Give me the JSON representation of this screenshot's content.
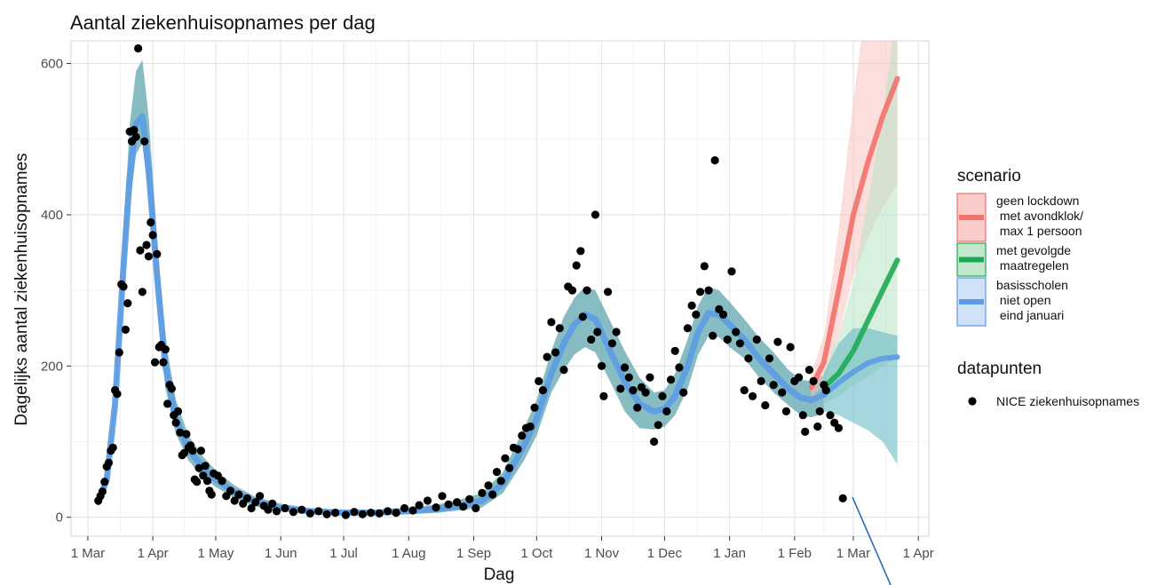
{
  "chart_data": {
    "type": "line",
    "title": "Aantal ziekenhuisopnames per dag",
    "xlabel": "Dag",
    "ylabel": "Dagelijks aantal ziekenhuisopnames",
    "xlim": [
      "2020-02-22",
      "2021-04-06"
    ],
    "ylim": [
      -25,
      630
    ],
    "grid": true,
    "legend_placement": "right",
    "x_ticks": [
      {
        "date": "2020-03-01",
        "label": "1 Mar"
      },
      {
        "date": "2020-04-01",
        "label": "1 Apr"
      },
      {
        "date": "2020-05-01",
        "label": "1 May"
      },
      {
        "date": "2020-06-01",
        "label": "1 Jun"
      },
      {
        "date": "2020-07-01",
        "label": "1 Jul"
      },
      {
        "date": "2020-08-01",
        "label": "1 Aug"
      },
      {
        "date": "2020-09-01",
        "label": "1 Sep"
      },
      {
        "date": "2020-10-01",
        "label": "1 Oct"
      },
      {
        "date": "2020-11-01",
        "label": "1 Nov"
      },
      {
        "date": "2020-12-01",
        "label": "1 Dec"
      },
      {
        "date": "2021-01-01",
        "label": "1 Jan"
      },
      {
        "date": "2021-02-01",
        "label": "1 Feb"
      },
      {
        "date": "2021-03-01",
        "label": "1 Mar"
      },
      {
        "date": "2021-04-01",
        "label": "1 Apr"
      }
    ],
    "y_ticks": [
      {
        "value": 0,
        "label": "0"
      },
      {
        "value": 200,
        "label": "200"
      },
      {
        "value": 400,
        "label": "400"
      },
      {
        "value": 600,
        "label": "600"
      }
    ],
    "legend": {
      "scenario_title": "scenario",
      "datapoints_title": "datapunten",
      "scenarios": [
        {
          "lines": [
            "geen lockdown",
            " met avondklok/",
            " max 1 persoon"
          ],
          "color": "#f2716b",
          "fill": "#f9c3c1"
        },
        {
          "lines": [
            "met gevolgde",
            " maatregelen"
          ],
          "color": "#1eaa55",
          "fill": "#b8e3c3"
        },
        {
          "lines": [
            "basisscholen",
            " niet open",
            " eind januari"
          ],
          "color": "#5b9be6",
          "fill": "#c9dcf7"
        }
      ],
      "points_label": "NICE ziekenhuisopnames"
    },
    "series": [
      {
        "key": "fit",
        "color": "#5b9be6",
        "band_color": "#5fa7ad",
        "x": [
          "2020-03-06",
          "2020-03-10",
          "2020-03-14",
          "2020-03-18",
          "2020-03-21",
          "2020-03-24",
          "2020-03-27",
          "2020-03-30",
          "2020-04-03",
          "2020-04-07",
          "2020-04-12",
          "2020-04-18",
          "2020-04-25",
          "2020-05-01",
          "2020-05-10",
          "2020-05-20",
          "2020-06-01",
          "2020-06-15",
          "2020-07-01",
          "2020-07-15",
          "2020-08-01",
          "2020-08-15",
          "2020-08-25",
          "2020-09-05",
          "2020-09-15",
          "2020-09-25",
          "2020-10-01",
          "2020-10-08",
          "2020-10-14",
          "2020-10-19",
          "2020-10-24",
          "2020-10-29",
          "2020-11-05",
          "2020-11-12",
          "2020-11-19",
          "2020-11-26",
          "2020-12-01",
          "2020-12-06",
          "2020-12-12",
          "2020-12-17",
          "2020-12-22",
          "2020-12-27",
          "2021-01-01",
          "2021-01-08",
          "2021-01-15",
          "2021-01-22",
          "2021-01-29",
          "2021-02-04",
          "2021-02-09",
          "2021-02-15"
        ],
        "y": [
          20,
          50,
          150,
          330,
          450,
          520,
          530,
          460,
          320,
          200,
          130,
          90,
          65,
          50,
          33,
          20,
          12,
          8,
          6,
          6,
          8,
          11,
          15,
          22,
          45,
          95,
          130,
          190,
          230,
          255,
          268,
          262,
          220,
          180,
          150,
          140,
          143,
          160,
          200,
          245,
          270,
          268,
          255,
          235,
          210,
          190,
          170,
          158,
          155,
          162
        ],
        "lower": [
          15,
          42,
          130,
          295,
          410,
          480,
          495,
          420,
          280,
          170,
          110,
          75,
          52,
          40,
          25,
          14,
          8,
          4,
          3,
          3,
          4,
          6,
          9,
          13,
          32,
          75,
          108,
          165,
          195,
          215,
          225,
          218,
          180,
          140,
          118,
          116,
          120,
          135,
          170,
          215,
          240,
          238,
          225,
          210,
          185,
          165,
          148,
          135,
          132,
          138
        ],
        "upper": [
          28,
          60,
          175,
          370,
          520,
          590,
          605,
          530,
          370,
          235,
          155,
          108,
          80,
          62,
          42,
          27,
          18,
          12,
          10,
          10,
          13,
          17,
          23,
          32,
          60,
          118,
          155,
          220,
          265,
          290,
          305,
          300,
          260,
          220,
          185,
          165,
          168,
          190,
          235,
          280,
          305,
          300,
          285,
          262,
          238,
          218,
          195,
          182,
          180,
          188
        ]
      },
      {
        "key": "geen lockdown",
        "color": "#f2716b",
        "band_color": "#f9c3c1",
        "x": [
          "2021-02-09",
          "2021-02-15",
          "2021-02-22",
          "2021-03-01",
          "2021-03-08",
          "2021-03-15",
          "2021-03-22"
        ],
        "y": [
          172,
          205,
          300,
          400,
          470,
          530,
          580
        ],
        "lower": [
          158,
          175,
          240,
          320,
          370,
          410,
          440
        ],
        "upper": [
          190,
          240,
          380,
          550,
          700,
          800,
          900
        ]
      },
      {
        "key": "met gevolgde maatregelen",
        "color": "#1eaa55",
        "band_color": "#b8e3c3",
        "x": [
          "2021-02-15",
          "2021-02-22",
          "2021-03-01",
          "2021-03-08",
          "2021-03-15",
          "2021-03-22"
        ],
        "y": [
          172,
          190,
          220,
          260,
          300,
          340
        ],
        "lower": [
          150,
          160,
          175,
          185,
          200,
          210
        ],
        "upper": [
          195,
          240,
          310,
          420,
          530,
          680
        ]
      },
      {
        "key": "basisscholen niet open eind januari",
        "color": "#5b9be6",
        "band_color": "#5fb7c3",
        "x": [
          "2021-02-15",
          "2021-02-22",
          "2021-03-01",
          "2021-03-08",
          "2021-03-15",
          "2021-03-22"
        ],
        "y": [
          162,
          178,
          192,
          204,
          210,
          212
        ],
        "lower": [
          140,
          135,
          125,
          115,
          100,
          70
        ],
        "upper": [
          190,
          230,
          250,
          250,
          245,
          240
        ]
      }
    ],
    "points": [
      [
        "2020-03-06",
        22
      ],
      [
        "2020-03-07",
        28
      ],
      [
        "2020-03-08",
        34
      ],
      [
        "2020-03-09",
        47
      ],
      [
        "2020-03-10",
        67
      ],
      [
        "2020-03-11",
        72
      ],
      [
        "2020-03-12",
        88
      ],
      [
        "2020-03-13",
        92
      ],
      [
        "2020-03-14",
        168
      ],
      [
        "2020-03-15",
        163
      ],
      [
        "2020-03-16",
        218
      ],
      [
        "2020-03-17",
        308
      ],
      [
        "2020-03-18",
        305
      ],
      [
        "2020-03-19",
        248
      ],
      [
        "2020-03-20",
        283
      ],
      [
        "2020-03-21",
        510
      ],
      [
        "2020-03-22",
        497
      ],
      [
        "2020-03-23",
        512
      ],
      [
        "2020-03-24",
        503
      ],
      [
        "2020-03-25",
        620
      ],
      [
        "2020-03-26",
        353
      ],
      [
        "2020-03-27",
        298
      ],
      [
        "2020-03-28",
        497
      ],
      [
        "2020-03-29",
        360
      ],
      [
        "2020-03-30",
        345
      ],
      [
        "2020-03-31",
        390
      ],
      [
        "2020-04-01",
        373
      ],
      [
        "2020-04-02",
        205
      ],
      [
        "2020-04-03",
        348
      ],
      [
        "2020-04-04",
        225
      ],
      [
        "2020-04-05",
        228
      ],
      [
        "2020-04-06",
        205
      ],
      [
        "2020-04-07",
        222
      ],
      [
        "2020-04-08",
        150
      ],
      [
        "2020-04-09",
        175
      ],
      [
        "2020-04-10",
        170
      ],
      [
        "2020-04-11",
        135
      ],
      [
        "2020-04-12",
        125
      ],
      [
        "2020-04-13",
        140
      ],
      [
        "2020-04-14",
        112
      ],
      [
        "2020-04-15",
        82
      ],
      [
        "2020-04-16",
        85
      ],
      [
        "2020-04-17",
        110
      ],
      [
        "2020-04-18",
        92
      ],
      [
        "2020-04-19",
        95
      ],
      [
        "2020-04-20",
        88
      ],
      [
        "2020-04-21",
        50
      ],
      [
        "2020-04-22",
        47
      ],
      [
        "2020-04-23",
        65
      ],
      [
        "2020-04-24",
        88
      ],
      [
        "2020-04-25",
        55
      ],
      [
        "2020-04-26",
        68
      ],
      [
        "2020-04-27",
        48
      ],
      [
        "2020-04-28",
        35
      ],
      [
        "2020-04-29",
        30
      ],
      [
        "2020-04-30",
        58
      ],
      [
        "2020-05-02",
        55
      ],
      [
        "2020-05-04",
        48
      ],
      [
        "2020-05-06",
        28
      ],
      [
        "2020-05-08",
        35
      ],
      [
        "2020-05-10",
        22
      ],
      [
        "2020-05-12",
        30
      ],
      [
        "2020-05-14",
        18
      ],
      [
        "2020-05-16",
        25
      ],
      [
        "2020-05-18",
        12
      ],
      [
        "2020-05-20",
        20
      ],
      [
        "2020-05-22",
        28
      ],
      [
        "2020-05-24",
        15
      ],
      [
        "2020-05-26",
        10
      ],
      [
        "2020-05-28",
        18
      ],
      [
        "2020-05-30",
        8
      ],
      [
        "2020-06-03",
        12
      ],
      [
        "2020-06-07",
        7
      ],
      [
        "2020-06-11",
        10
      ],
      [
        "2020-06-15",
        5
      ],
      [
        "2020-06-19",
        8
      ],
      [
        "2020-06-23",
        4
      ],
      [
        "2020-06-27",
        6
      ],
      [
        "2020-07-02",
        3
      ],
      [
        "2020-07-06",
        7
      ],
      [
        "2020-07-10",
        4
      ],
      [
        "2020-07-14",
        6
      ],
      [
        "2020-07-18",
        5
      ],
      [
        "2020-07-22",
        8
      ],
      [
        "2020-07-26",
        6
      ],
      [
        "2020-07-30",
        12
      ],
      [
        "2020-08-03",
        9
      ],
      [
        "2020-08-06",
        16
      ],
      [
        "2020-08-10",
        22
      ],
      [
        "2020-08-14",
        13
      ],
      [
        "2020-08-17",
        28
      ],
      [
        "2020-08-20",
        17
      ],
      [
        "2020-08-24",
        20
      ],
      [
        "2020-08-27",
        14
      ],
      [
        "2020-08-30",
        24
      ],
      [
        "2020-09-02",
        12
      ],
      [
        "2020-09-05",
        32
      ],
      [
        "2020-09-08",
        42
      ],
      [
        "2020-09-10",
        30
      ],
      [
        "2020-09-12",
        60
      ],
      [
        "2020-09-14",
        48
      ],
      [
        "2020-09-16",
        78
      ],
      [
        "2020-09-18",
        65
      ],
      [
        "2020-09-20",
        92
      ],
      [
        "2020-09-22",
        90
      ],
      [
        "2020-09-24",
        108
      ],
      [
        "2020-09-26",
        118
      ],
      [
        "2020-09-28",
        120
      ],
      [
        "2020-09-30",
        145
      ],
      [
        "2020-10-02",
        180
      ],
      [
        "2020-10-04",
        168
      ],
      [
        "2020-10-06",
        212
      ],
      [
        "2020-10-08",
        258
      ],
      [
        "2020-10-10",
        218
      ],
      [
        "2020-10-12",
        250
      ],
      [
        "2020-10-14",
        195
      ],
      [
        "2020-10-16",
        305
      ],
      [
        "2020-10-18",
        300
      ],
      [
        "2020-10-20",
        333
      ],
      [
        "2020-10-22",
        352
      ],
      [
        "2020-10-23",
        265
      ],
      [
        "2020-10-25",
        300
      ],
      [
        "2020-10-27",
        235
      ],
      [
        "2020-10-29",
        400
      ],
      [
        "2020-10-30",
        245
      ],
      [
        "2020-11-01",
        200
      ],
      [
        "2020-11-02",
        160
      ],
      [
        "2020-11-04",
        298
      ],
      [
        "2020-11-06",
        230
      ],
      [
        "2020-11-08",
        245
      ],
      [
        "2020-11-10",
        170
      ],
      [
        "2020-11-12",
        198
      ],
      [
        "2020-11-14",
        185
      ],
      [
        "2020-11-16",
        168
      ],
      [
        "2020-11-18",
        145
      ],
      [
        "2020-11-20",
        172
      ],
      [
        "2020-11-22",
        165
      ],
      [
        "2020-11-24",
        185
      ],
      [
        "2020-11-26",
        100
      ],
      [
        "2020-11-28",
        122
      ],
      [
        "2020-11-30",
        160
      ],
      [
        "2020-12-02",
        140
      ],
      [
        "2020-12-04",
        182
      ],
      [
        "2020-12-06",
        220
      ],
      [
        "2020-12-08",
        198
      ],
      [
        "2020-12-10",
        165
      ],
      [
        "2020-12-12",
        250
      ],
      [
        "2020-12-14",
        280
      ],
      [
        "2020-12-16",
        268
      ],
      [
        "2020-12-18",
        298
      ],
      [
        "2020-12-20",
        332
      ],
      [
        "2020-12-22",
        300
      ],
      [
        "2020-12-24",
        240
      ],
      [
        "2020-12-25",
        472
      ],
      [
        "2020-12-27",
        275
      ],
      [
        "2020-12-29",
        268
      ],
      [
        "2020-12-31",
        235
      ],
      [
        "2021-01-02",
        325
      ],
      [
        "2021-01-04",
        245
      ],
      [
        "2021-01-06",
        230
      ],
      [
        "2021-01-08",
        168
      ],
      [
        "2021-01-10",
        210
      ],
      [
        "2021-01-12",
        160
      ],
      [
        "2021-01-14",
        235
      ],
      [
        "2021-01-16",
        180
      ],
      [
        "2021-01-18",
        148
      ],
      [
        "2021-01-20",
        210
      ],
      [
        "2021-01-22",
        175
      ],
      [
        "2021-01-24",
        232
      ],
      [
        "2021-01-26",
        165
      ],
      [
        "2021-01-28",
        140
      ],
      [
        "2021-01-30",
        225
      ],
      [
        "2021-02-01",
        180
      ],
      [
        "2021-02-03",
        185
      ],
      [
        "2021-02-05",
        135
      ],
      [
        "2021-02-06",
        113
      ],
      [
        "2021-02-08",
        195
      ],
      [
        "2021-02-10",
        180
      ],
      [
        "2021-02-12",
        120
      ],
      [
        "2021-02-13",
        140
      ],
      [
        "2021-02-15",
        175
      ],
      [
        "2021-02-16",
        168
      ],
      [
        "2021-02-18",
        135
      ],
      [
        "2021-02-20",
        125
      ],
      [
        "2021-02-22",
        118
      ],
      [
        "2021-02-24",
        25
      ]
    ]
  }
}
